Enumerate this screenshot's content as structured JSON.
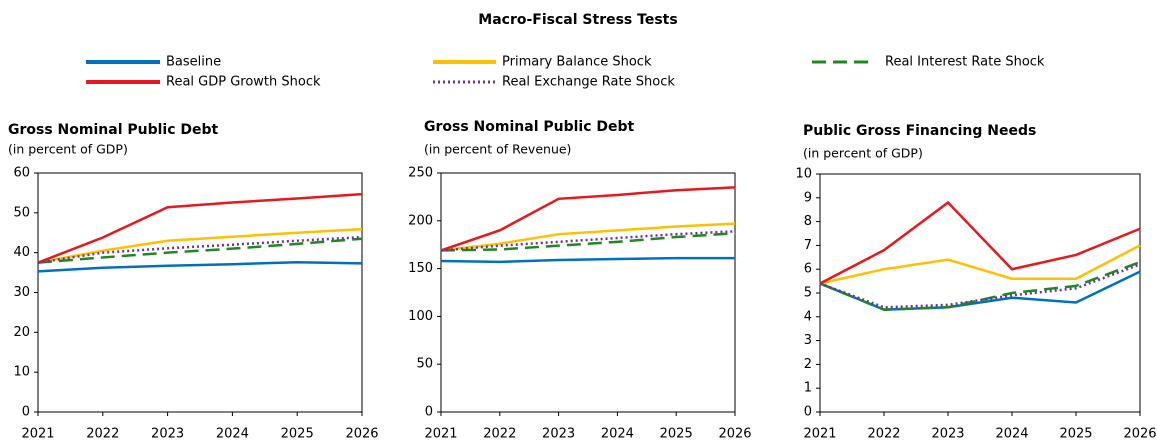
{
  "title": "Macro-Fiscal Stress Tests",
  "legend": [
    {
      "name": "Baseline",
      "color": "#0070c0",
      "style": "solid"
    },
    {
      "name": "Primary Balance Shock",
      "color": "#ffc000",
      "style": "solid"
    },
    {
      "name": "Real Interest Rate Shock",
      "color": "#1e8a1e",
      "style": "dashed"
    },
    {
      "name": "Real GDP Growth Shock",
      "color": "#e8181c",
      "style": "solid"
    },
    {
      "name": "Real Exchange Rate Shock",
      "color": "#7030a0",
      "style": "dotted"
    }
  ],
  "chart_data": [
    {
      "type": "line",
      "title": "Gross Nominal Public Debt",
      "subtitle": "(in percent of GDP)",
      "categories": [
        "2021",
        "2022",
        "2023",
        "2024",
        "2025",
        "2026"
      ],
      "ylim": [
        0,
        60
      ],
      "yticks": [
        0,
        10,
        20,
        30,
        40,
        50,
        60
      ],
      "series": [
        {
          "values": [
            35.3,
            36.2,
            36.7,
            37.1,
            37.6,
            37.3
          ]
        },
        {
          "values": [
            37.5,
            40.5,
            43.0,
            44.0,
            45.0,
            45.9
          ]
        },
        {
          "values": [
            37.5,
            38.8,
            40.0,
            41.0,
            42.2,
            43.5
          ]
        },
        {
          "values": [
            37.5,
            43.8,
            51.4,
            52.6,
            53.6,
            54.7
          ]
        },
        {
          "values": [
            37.5,
            40.0,
            41.1,
            42.0,
            43.0,
            43.9
          ]
        }
      ]
    },
    {
      "type": "line",
      "title": "Gross Nominal Public Debt",
      "subtitle": "(in percent of Revenue)",
      "categories": [
        "2021",
        "2022",
        "2023",
        "2024",
        "2025",
        "2026"
      ],
      "ylim": [
        0,
        250
      ],
      "yticks": [
        0,
        50,
        100,
        150,
        200,
        250
      ],
      "series": [
        {
          "values": [
            158,
            157,
            159,
            160,
            161,
            161
          ]
        },
        {
          "values": [
            169,
            176,
            186,
            190,
            194,
            197
          ]
        },
        {
          "values": [
            169,
            170,
            174,
            178,
            183,
            187
          ]
        },
        {
          "values": [
            169,
            190,
            223,
            227,
            232,
            235
          ]
        },
        {
          "values": [
            169,
            174,
            178,
            182,
            186,
            189
          ]
        }
      ]
    },
    {
      "type": "line",
      "title": "Public Gross Financing Needs",
      "subtitle": "(in percent of GDP)",
      "categories": [
        "2021",
        "2022",
        "2023",
        "2024",
        "2025",
        "2026"
      ],
      "ylim": [
        0,
        10
      ],
      "yticks": [
        0,
        1,
        2,
        3,
        4,
        5,
        6,
        7,
        8,
        9,
        10
      ],
      "series": [
        {
          "values": [
            5.4,
            4.3,
            4.4,
            4.8,
            4.6,
            5.9
          ]
        },
        {
          "values": [
            5.4,
            6.0,
            6.4,
            5.6,
            5.6,
            7.0
          ]
        },
        {
          "values": [
            5.4,
            4.3,
            4.4,
            5.0,
            5.3,
            6.3
          ]
        },
        {
          "values": [
            5.4,
            6.8,
            8.8,
            6.0,
            6.6,
            7.7
          ]
        },
        {
          "values": [
            5.4,
            4.4,
            4.5,
            4.9,
            5.2,
            6.2
          ]
        }
      ]
    }
  ]
}
